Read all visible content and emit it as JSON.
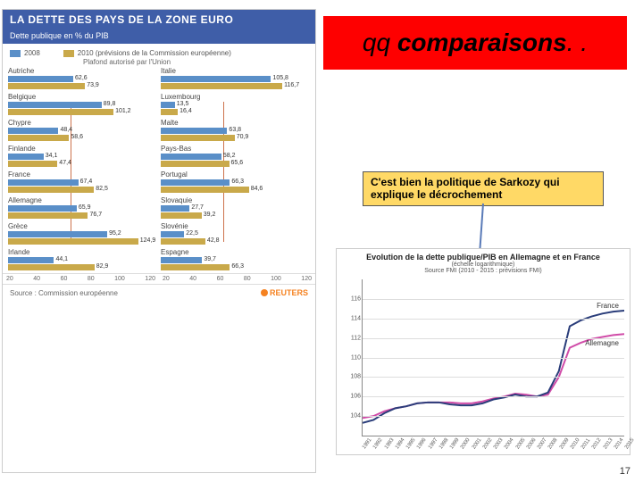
{
  "title": {
    "prefix": "qq ",
    "main": "comparaisons",
    "suffix": ". ."
  },
  "caption": "C'est bien la politique de Sarkozy qui explique le décrochement",
  "page_number": "17",
  "left_chart": {
    "header": "LA DETTE DES PAYS DE LA ZONE EURO",
    "subheader": "Dette publique en % du PIB",
    "legend_2008": "2008",
    "legend_2010": "2010 (prévisions de la Commission européenne)",
    "plafond": "Plafond autorisé\npar l'Union",
    "source": "Source : Commission européenne",
    "agency": "REUTERS",
    "color_2008": "#5a8fc8",
    "color_2010": "#c9a94a",
    "plafond_color": "#c05020",
    "plafond_value": 60,
    "xmax": 120,
    "xticks": [
      "20",
      "40",
      "60",
      "80",
      "100",
      "120"
    ],
    "countries_left": [
      {
        "name": "Autriche",
        "v08": 62.6,
        "v10": 73.9
      },
      {
        "name": "Belgique",
        "v08": 89.8,
        "v10": 101.2
      },
      {
        "name": "Chypre",
        "v08": 48.4,
        "v10": 58.6
      },
      {
        "name": "Finlande",
        "v08": 34.1,
        "v10": 47.4
      },
      {
        "name": "France",
        "v08": 67.4,
        "v10": 82.5
      },
      {
        "name": "Allemagne",
        "v08": 65.9,
        "v10": 76.7
      },
      {
        "name": "Grèce",
        "v08": 95.2,
        "v10": 124.9
      },
      {
        "name": "Irlande",
        "v08": 44.1,
        "v10": 82.9
      }
    ],
    "countries_right": [
      {
        "name": "Italie",
        "v08": 105.8,
        "v10": 116.7
      },
      {
        "name": "Luxembourg",
        "v08": 13.5,
        "v10": 16.4
      },
      {
        "name": "Malte",
        "v08": 63.8,
        "v10": 70.9
      },
      {
        "name": "Pays-Bas",
        "v08": 58.2,
        "v10": 65.6
      },
      {
        "name": "Portugal",
        "v08": 66.3,
        "v10": 84.6
      },
      {
        "name": "Slovaquie",
        "v08": 27.7,
        "v10": 39.2
      },
      {
        "name": "Slovénie",
        "v08": 22.5,
        "v10": 42.8
      },
      {
        "name": "Espagne",
        "v08": 39.7,
        "v10": 66.3
      }
    ]
  },
  "right_chart": {
    "title": "Evolution de la dette publique/PIB en Allemagne et en France",
    "subtitle": "(échelle logarithmique)",
    "source_sub": "Source FMI (2010 - 2015 : prévisions FMI)",
    "ylim": [
      102,
      118
    ],
    "yticks": [
      104,
      106,
      108,
      110,
      112,
      114,
      116
    ],
    "xyears": [
      "1991",
      "1992",
      "1993",
      "1994",
      "1995",
      "1996",
      "1997",
      "1998",
      "1999",
      "2000",
      "2001",
      "2002",
      "2003",
      "2004",
      "2005",
      "2006",
      "2007",
      "2008",
      "2009",
      "2010",
      "2011",
      "2012",
      "2013",
      "2014",
      "2015"
    ],
    "france": {
      "label": "France",
      "color": "#2a3d7a",
      "values": [
        103.3,
        103.6,
        104.3,
        104.8,
        105.0,
        105.3,
        105.4,
        105.4,
        105.2,
        105.1,
        105.1,
        105.3,
        105.7,
        105.9,
        106.2,
        106.0,
        106.0,
        106.4,
        108.6,
        113.2,
        113.8,
        114.2,
        114.5,
        114.7,
        114.8
      ]
    },
    "germany": {
      "label": "Allemagne",
      "color": "#d04ca8",
      "values": [
        103.8,
        104.0,
        104.5,
        104.8,
        105.0,
        105.3,
        105.4,
        105.4,
        105.4,
        105.3,
        105.3,
        105.5,
        105.8,
        106.0,
        106.3,
        106.2,
        106.0,
        106.2,
        108.0,
        111.0,
        111.5,
        111.9,
        112.1,
        112.3,
        112.4
      ]
    }
  }
}
